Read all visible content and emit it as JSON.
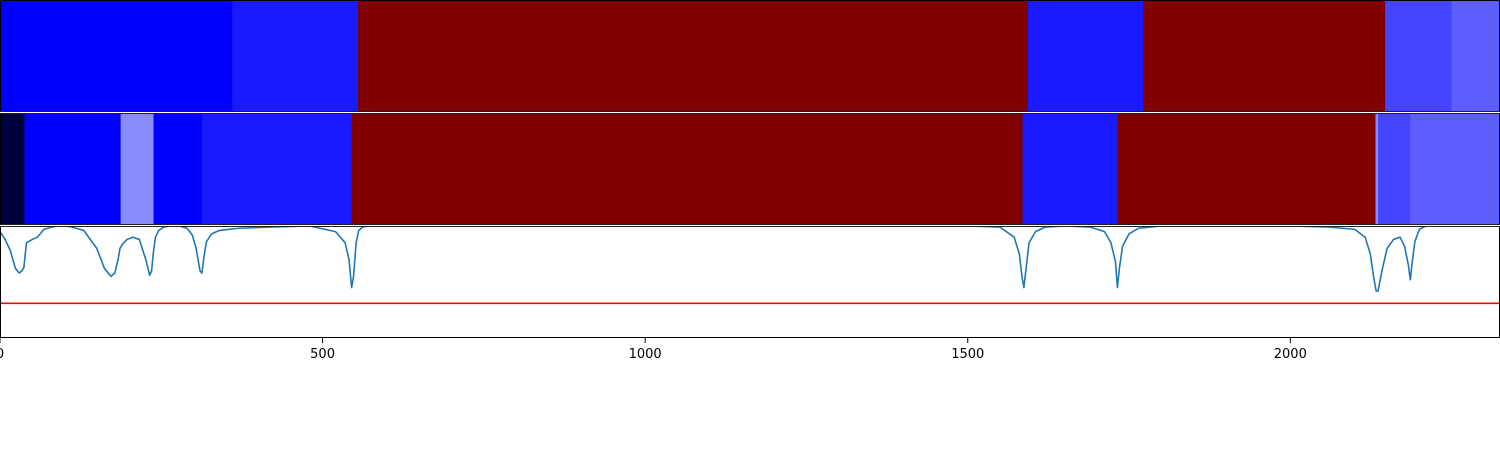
{
  "chart_data": {
    "type": "heatmap",
    "title": "",
    "xlabel": "",
    "ylabel": "",
    "xlim": [
      0,
      2325
    ],
    "xticks": [
      0,
      500,
      1000,
      1500,
      2000
    ],
    "xtick_labels": [
      "0",
      "500",
      "1000",
      "1500",
      "2000"
    ],
    "grid": false,
    "legend": "none",
    "colors": {
      "background": "#ffffff",
      "axes": "#000000",
      "curve": "#1f77b4",
      "threshold": "#ff0000",
      "divider": "#ffffff"
    },
    "panels": [
      {
        "name": "segmentation-track-1",
        "type": "segments",
        "segments": [
          {
            "start": 0,
            "end": 360,
            "color": "#0000ff"
          },
          {
            "start": 360,
            "end": 555,
            "color": "#1a1aff"
          },
          {
            "start": 555,
            "end": 1593,
            "color": "#800000"
          },
          {
            "start": 1593,
            "end": 1772,
            "color": "#1a1aff"
          },
          {
            "start": 1772,
            "end": 2147,
            "color": "#800000"
          },
          {
            "start": 2147,
            "end": 2250,
            "color": "#4545ff"
          },
          {
            "start": 2250,
            "end": 2325,
            "color": "#5e5eff"
          }
        ]
      },
      {
        "name": "segmentation-track-2",
        "type": "segments",
        "segments": [
          {
            "start": 0,
            "end": 38,
            "color": "#00003f"
          },
          {
            "start": 38,
            "end": 187,
            "color": "#0000ff"
          },
          {
            "start": 187,
            "end": 238,
            "color": "#8a8aff"
          },
          {
            "start": 238,
            "end": 313,
            "color": "#0000ff"
          },
          {
            "start": 313,
            "end": 545,
            "color": "#1a1aff"
          },
          {
            "start": 545,
            "end": 1585,
            "color": "#800000"
          },
          {
            "start": 1585,
            "end": 1732,
            "color": "#1a1aff"
          },
          {
            "start": 1732,
            "end": 2132,
            "color": "#800000"
          },
          {
            "start": 2132,
            "end": 2136,
            "color": "#8a8aff"
          },
          {
            "start": 2136,
            "end": 2186,
            "color": "#4545ff"
          },
          {
            "start": 2186,
            "end": 2325,
            "color": "#5e5eff"
          }
        ]
      },
      {
        "name": "score-line",
        "type": "line",
        "ylim": [
          0,
          1
        ],
        "threshold": 0.31,
        "x": [
          0,
          8,
          16,
          24,
          30,
          34,
          37,
          41,
          50,
          58,
          68,
          80,
          90,
          100,
          112,
          130,
          150,
          162,
          172,
          178,
          183,
          186,
          190,
          197,
          206,
          216,
          226,
          232,
          235,
          238,
          241,
          246,
          254,
          264,
          278,
          290,
          298,
          304,
          310,
          313,
          316,
          320,
          328,
          340,
          370,
          420,
          480,
          520,
          535,
          541,
          545,
          548,
          552,
          556,
          562,
          570,
          620,
          800,
          1000,
          1200,
          1400,
          1500,
          1550,
          1572,
          1580,
          1584,
          1587,
          1590,
          1595,
          1605,
          1620,
          1650,
          1690,
          1712,
          1722,
          1729,
          1732,
          1735,
          1740,
          1750,
          1765,
          1800,
          1900,
          2000,
          2060,
          2100,
          2116,
          2124,
          2129,
          2133,
          2136,
          2142,
          2150,
          2160,
          2170,
          2177,
          2183,
          2186,
          2189,
          2193,
          2200,
          2210,
          2230,
          2325
        ],
        "y": [
          0.95,
          0.88,
          0.78,
          0.62,
          0.58,
          0.6,
          0.63,
          0.85,
          0.88,
          0.9,
          0.97,
          0.99,
          1.0,
          1.0,
          0.99,
          0.96,
          0.8,
          0.62,
          0.55,
          0.58,
          0.7,
          0.8,
          0.84,
          0.88,
          0.9,
          0.88,
          0.7,
          0.56,
          0.6,
          0.78,
          0.9,
          0.96,
          0.99,
          1.0,
          1.0,
          0.98,
          0.92,
          0.8,
          0.6,
          0.58,
          0.72,
          0.86,
          0.93,
          0.96,
          0.98,
          0.99,
          1.0,
          0.95,
          0.85,
          0.7,
          0.45,
          0.55,
          0.85,
          0.96,
          0.99,
          1.0,
          1.0,
          1.0,
          1.0,
          1.0,
          1.0,
          1.0,
          0.99,
          0.9,
          0.75,
          0.55,
          0.45,
          0.6,
          0.85,
          0.95,
          0.99,
          1.0,
          0.99,
          0.95,
          0.85,
          0.68,
          0.45,
          0.62,
          0.82,
          0.93,
          0.98,
          1.0,
          1.0,
          1.0,
          0.99,
          0.97,
          0.9,
          0.75,
          0.55,
          0.42,
          0.42,
          0.6,
          0.8,
          0.88,
          0.9,
          0.82,
          0.65,
          0.52,
          0.68,
          0.86,
          0.97,
          1.0,
          1.0,
          1.0
        ]
      }
    ]
  }
}
